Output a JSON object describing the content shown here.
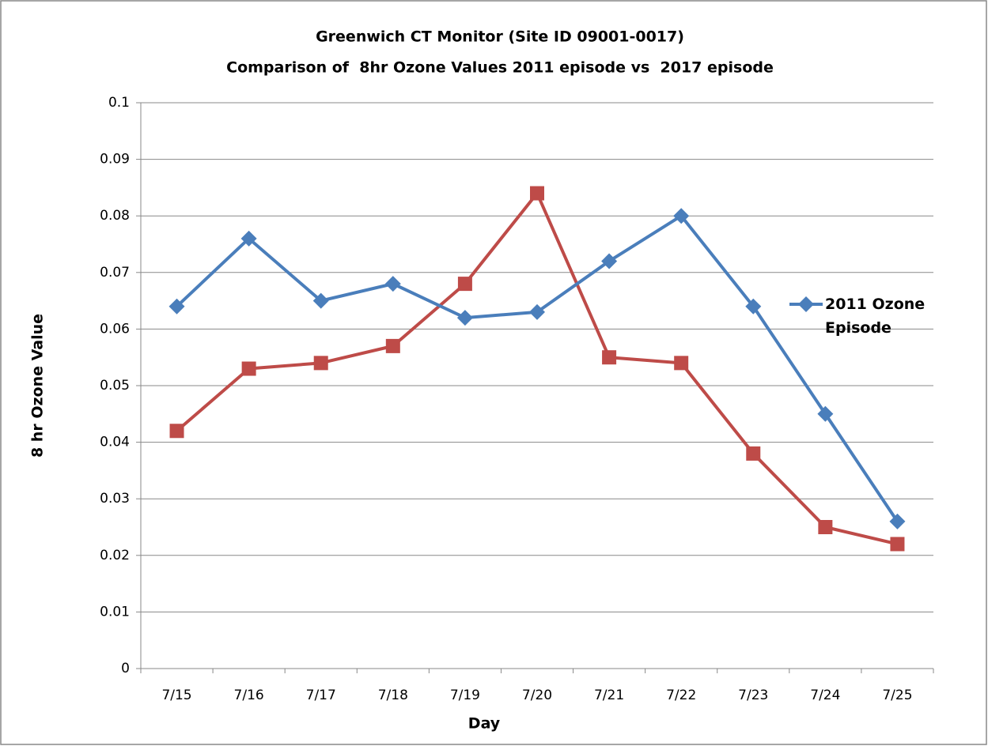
{
  "chart_data": {
    "type": "line",
    "title": "Greenwich CT Monitor (Site ID 09001-0017)",
    "subtitle": "Comparison of  8hr Ozone Values 2011 episode vs  2017 episode",
    "x_label": "Day",
    "y_label": "8 hr Ozone Value",
    "categories": [
      "7/15",
      "7/16",
      "7/17",
      "7/18",
      "7/19",
      "7/20",
      "7/21",
      "7/22",
      "7/23",
      "7/24",
      "7/25"
    ],
    "series": [
      {
        "name": "2011 Ozone Episode",
        "color": "#4a7ebb",
        "marker": "diamond",
        "values": [
          0.064,
          0.076,
          0.065,
          0.068,
          0.062,
          0.063,
          0.072,
          0.08,
          0.064,
          0.045,
          0.026
        ]
      },
      {
        "color": "#be4b48",
        "marker": "square",
        "values": [
          0.042,
          0.053,
          0.054,
          0.057,
          0.068,
          0.084,
          0.055,
          0.054,
          0.038,
          0.025,
          0.022
        ]
      }
    ],
    "ylim": [
      0,
      0.1
    ],
    "yticks": [
      0,
      0.01,
      0.02,
      0.03,
      0.04,
      0.05,
      0.06,
      0.07,
      0.08,
      0.09,
      0.1
    ],
    "grid": true,
    "legend": "right"
  }
}
